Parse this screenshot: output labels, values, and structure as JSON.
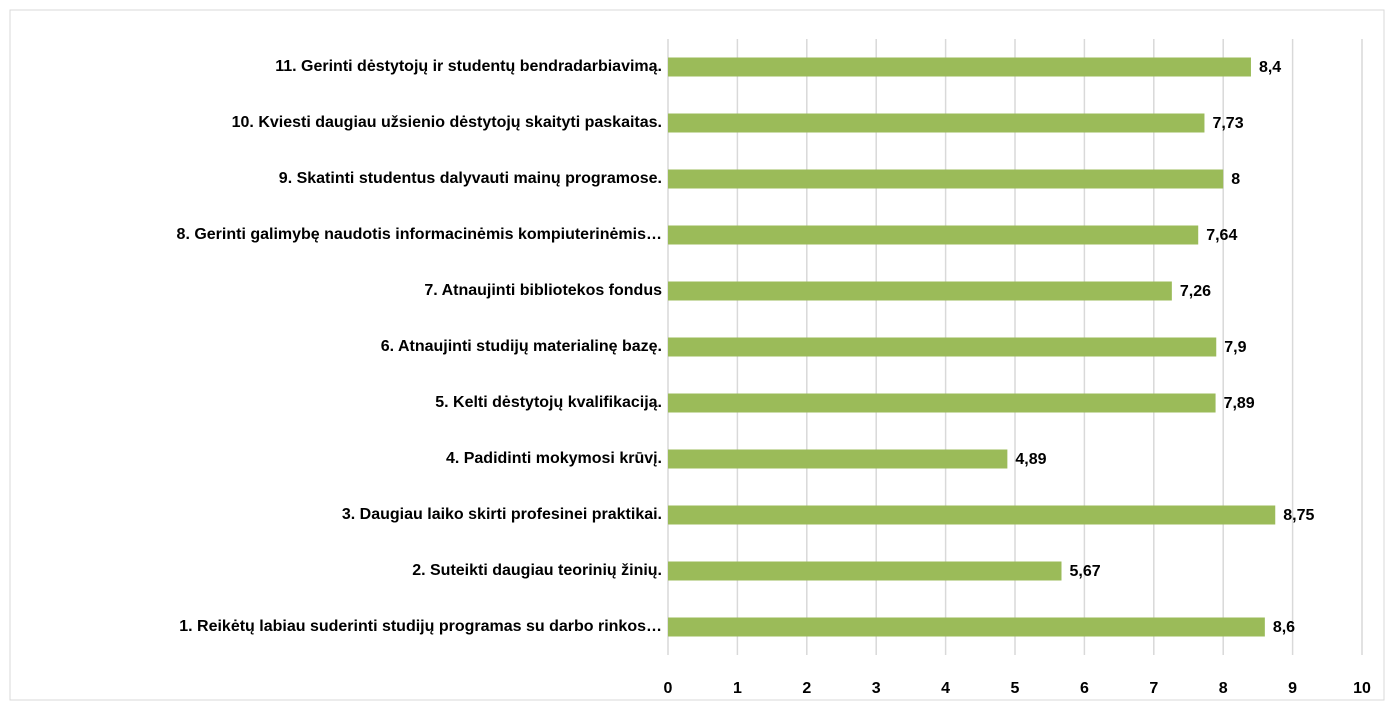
{
  "chart_data": {
    "type": "bar",
    "orientation": "horizontal",
    "categories": [
      "1. Reikėtų labiau suderinti studijų programas su darbo rinkos…",
      "2. Suteikti daugiau teorinių žinių.",
      "3. Daugiau laiko skirti profesinei praktikai.",
      "4. Padidinti mokymosi krūvį.",
      "5. Kelti dėstytojų kvalifikaciją.",
      "6. Atnaujinti studijų materialinę bazę.",
      "7. Atnaujinti bibliotekos fondus",
      "8. Gerinti galimybę naudotis informacinėmis kompiuterinėmis…",
      "9. Skatinti studentus dalyvauti mainų programose.",
      "10. Kviesti daugiau užsienio dėstytojų skaityti paskaitas.",
      "11. Gerinti dėstytojų ir studentų bendradarbiavimą."
    ],
    "values": [
      8.6,
      5.67,
      8.75,
      4.89,
      7.89,
      7.9,
      7.26,
      7.64,
      8,
      7.73,
      8.4
    ],
    "value_labels": [
      "8,6",
      "5,67",
      "8,75",
      "4,89",
      "7,89",
      "7,9",
      "7,26",
      "7,64",
      "8",
      "7,73",
      "8,4"
    ],
    "color": "#9bbb59",
    "xlim": [
      0,
      10
    ],
    "xticks": [
      0,
      1,
      2,
      3,
      4,
      5,
      6,
      7,
      8,
      9,
      10
    ],
    "grid": true
  }
}
